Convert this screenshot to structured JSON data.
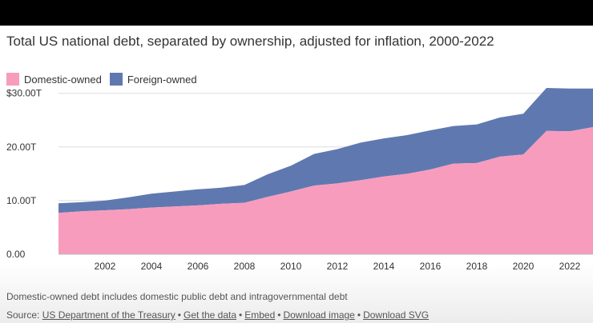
{
  "colors": {
    "domestic": "#f79cbd",
    "foreign": "#5f79b0",
    "grid": "#dddddd",
    "text": "#333333"
  },
  "chart_data": {
    "type": "area",
    "stacked": true,
    "title": "Total US national debt, separated by ownership, adjusted for inflation, 2000-2022",
    "x": [
      2000,
      2001,
      2002,
      2003,
      2004,
      2005,
      2006,
      2007,
      2008,
      2009,
      2010,
      2011,
      2012,
      2013,
      2014,
      2015,
      2016,
      2017,
      2018,
      2019,
      2020,
      2021,
      2022,
      2023
    ],
    "series": [
      {
        "name": "Domestic-owned",
        "values": [
          7.7,
          8.0,
          8.2,
          8.4,
          8.7,
          8.9,
          9.1,
          9.4,
          9.6,
          10.7,
          11.7,
          12.8,
          13.2,
          13.8,
          14.5,
          15.0,
          15.8,
          16.9,
          17.0,
          18.2,
          18.6,
          23.0,
          22.9,
          23.7
        ]
      },
      {
        "name": "Foreign-owned",
        "values": [
          1.8,
          1.7,
          1.8,
          2.2,
          2.6,
          2.8,
          3.0,
          3.0,
          3.3,
          4.2,
          4.8,
          5.9,
          6.4,
          7.0,
          7.1,
          7.2,
          7.3,
          7.0,
          7.2,
          7.3,
          7.6,
          8.0,
          8.0,
          7.2
        ]
      }
    ],
    "x_ticks": [
      "2002",
      "2004",
      "2006",
      "2008",
      "2010",
      "2012",
      "2014",
      "2016",
      "2018",
      "2020",
      "2022"
    ],
    "y_ticks": [
      "0.00",
      "10.00T",
      "20.00T",
      "$30.00T"
    ],
    "y_tick_values": [
      0,
      10,
      20,
      30
    ],
    "ylim": [
      0,
      31
    ],
    "xlim": [
      2000,
      2023
    ],
    "xlabel": "",
    "ylabel": ""
  },
  "legend": {
    "domestic": "Domestic-owned",
    "foreign": "Foreign-owned"
  },
  "note": "Domestic-owned debt includes domestic public debt and intragovernmental debt",
  "source": {
    "prefix": "Source: ",
    "links": [
      "US Department of the Treasury",
      "Get the data",
      "Embed",
      "Download image",
      "Download SVG"
    ],
    "separator": "•"
  }
}
